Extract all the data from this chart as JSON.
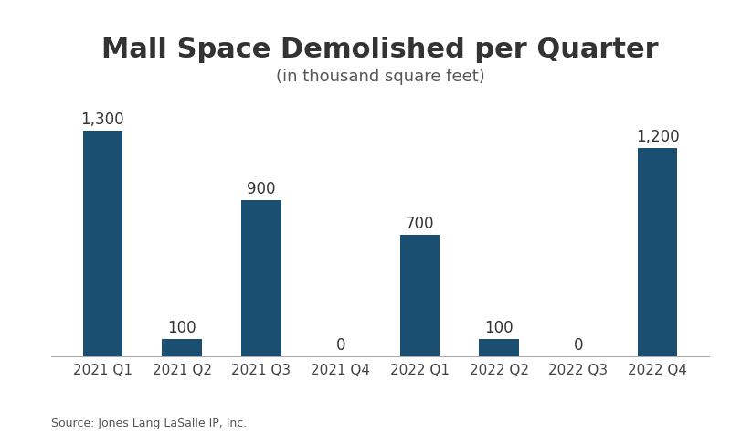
{
  "title": "Mall Space Demolished per Quarter",
  "subtitle": "(in thousand square feet)",
  "categories": [
    "2021 Q1",
    "2021 Q2",
    "2021 Q3",
    "2021 Q4",
    "2022 Q1",
    "2022 Q2",
    "2022 Q3",
    "2022 Q4"
  ],
  "values": [
    1300,
    100,
    900,
    0,
    700,
    100,
    0,
    1200
  ],
  "bar_color": "#1b4f72",
  "background_color": "#ffffff",
  "title_fontsize": 22,
  "subtitle_fontsize": 13,
  "label_fontsize": 12,
  "tick_fontsize": 11,
  "source_text": "Source: Jones Lang LaSalle IP, Inc.",
  "source_fontsize": 9,
  "ylim": [
    0,
    1500
  ],
  "bar_width": 0.5
}
